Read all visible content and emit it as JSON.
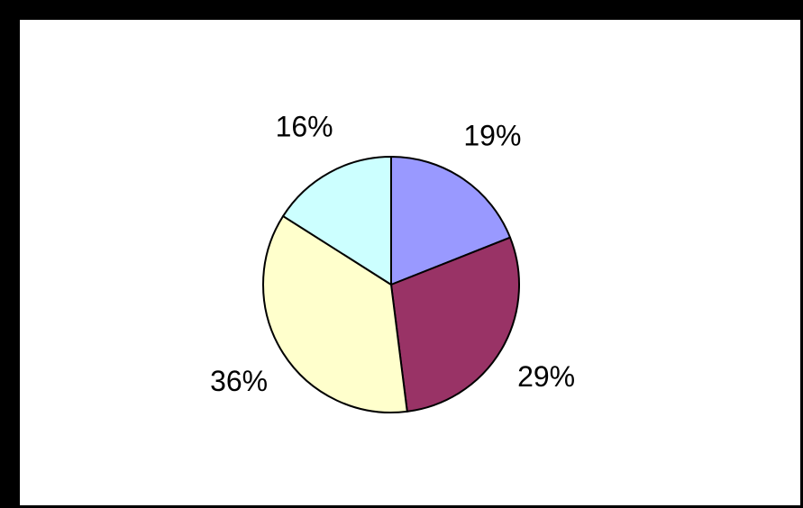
{
  "chart_data": {
    "type": "pie",
    "title": "",
    "legend": "none",
    "start_angle_deg": 90,
    "direction": "clockwise",
    "slices": [
      {
        "value": 19,
        "label": "19%",
        "color": "#9999ff"
      },
      {
        "value": 29,
        "label": "29%",
        "color": "#993366"
      },
      {
        "value": 36,
        "label": "36%",
        "color": "#ffffcc"
      },
      {
        "value": 16,
        "label": "16%",
        "color": "#ccffff"
      }
    ],
    "slice_outline_color": "#000000"
  }
}
